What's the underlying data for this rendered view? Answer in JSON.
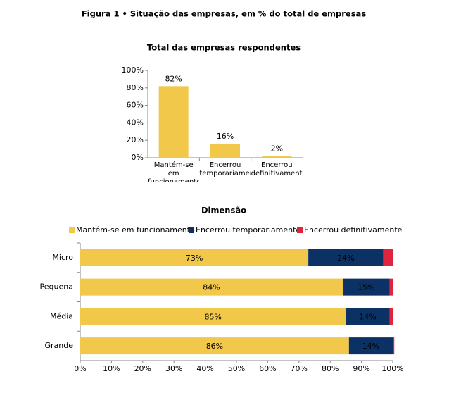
{
  "title": "Figura 1 • Situação das empresas, em % do total de empresas",
  "chart_data": [
    {
      "type": "bar",
      "title": "Total das empresas respondentes",
      "categories": [
        "Mantém-se em funcionamento",
        "Encerrou temporariamente",
        "Encerrou definitivamente"
      ],
      "values": [
        82,
        16,
        2
      ],
      "value_labels": [
        "82%",
        "16%",
        "2%"
      ],
      "color": "#f2c84b",
      "ylim": [
        0,
        100
      ],
      "yticks": [
        {
          "value": 0,
          "label": "0%"
        },
        {
          "value": 20,
          "label": "20%"
        },
        {
          "value": 40,
          "label": "40%"
        },
        {
          "value": 60,
          "label": "60%"
        },
        {
          "value": 80,
          "label": "80%"
        },
        {
          "value": 100,
          "label": "100%"
        }
      ],
      "grid": false
    },
    {
      "type": "stacked_barh",
      "title": "Dimensão",
      "categories": [
        "Micro",
        "Pequena",
        "Média",
        "Grande"
      ],
      "series": [
        {
          "name": "Mantém-se em funcionamento",
          "color": "#f2c84b",
          "values": [
            73,
            84,
            85,
            86
          ],
          "value_labels": [
            "73%",
            "84%",
            "85%",
            "86%"
          ]
        },
        {
          "name": "Encerrou temporariamente",
          "color": "#0b3165",
          "values": [
            24,
            15,
            14,
            14
          ],
          "value_labels": [
            "24%",
            "15%",
            "14%",
            "14%"
          ]
        },
        {
          "name": "Encerrou definitivamente",
          "color": "#e0243e",
          "values": [
            3,
            1,
            1,
            0.5
          ]
        }
      ],
      "xlim": [
        0,
        100
      ],
      "xticks": [
        {
          "value": 0,
          "label": "0%"
        },
        {
          "value": 10,
          "label": "10%"
        },
        {
          "value": 20,
          "label": "20%"
        },
        {
          "value": 30,
          "label": "30%"
        },
        {
          "value": 40,
          "label": "40%"
        },
        {
          "value": 50,
          "label": "50%"
        },
        {
          "value": 60,
          "label": "60%"
        },
        {
          "value": 70,
          "label": "70%"
        },
        {
          "value": 80,
          "label": "80%"
        },
        {
          "value": 90,
          "label": "90%"
        },
        {
          "value": 100,
          "label": "100%"
        }
      ],
      "legend": "top",
      "grid": false
    }
  ]
}
